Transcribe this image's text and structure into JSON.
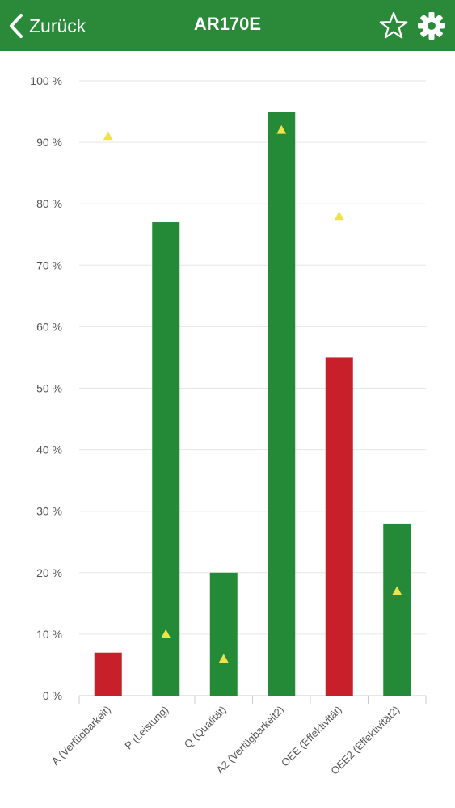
{
  "header": {
    "back_label": "Zurück",
    "title": "AR170E",
    "favorite_icon": "star-outline-icon",
    "settings_icon": "gear-icon"
  },
  "colors": {
    "navbar": "#2a8a3a",
    "bar_good": "#258a38",
    "bar_bad": "#c8202b",
    "target_marker": "#f0e24a",
    "grid": "#e6e6e6",
    "axis_text": "#555555"
  },
  "chart_data": {
    "type": "bar",
    "title": "",
    "xlabel": "",
    "ylabel": "",
    "ylim": [
      0,
      100
    ],
    "yticks": [
      0,
      10,
      20,
      30,
      40,
      50,
      60,
      70,
      80,
      90,
      100
    ],
    "ytick_labels": [
      "0 %",
      "10 %",
      "20 %",
      "30 %",
      "40 %",
      "50 %",
      "60 %",
      "70 %",
      "80 %",
      "90 %",
      "100 %"
    ],
    "grid": true,
    "categories": [
      "A (Verfügbarkeit)",
      "P (Leistung)",
      "Q (Qualität)",
      "A2 (Verfügbarkeit2)",
      "OEE (Effektivität)",
      "OEE2 (Effektivität2)"
    ],
    "series": [
      {
        "values": [
          7,
          77,
          20,
          95,
          55,
          28
        ],
        "status": [
          "bad",
          "good",
          "good",
          "good",
          "bad",
          "good"
        ]
      },
      {
        "marker": "triangle",
        "values": [
          91,
          10,
          6,
          92,
          78,
          17
        ]
      }
    ]
  }
}
